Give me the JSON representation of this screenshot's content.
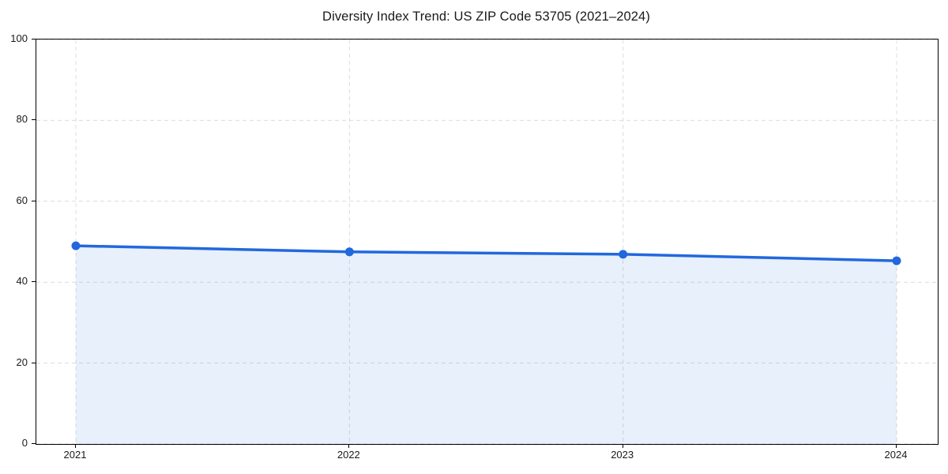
{
  "chart_data": {
    "type": "area",
    "title": "Diversity Index Trend: US ZIP Code 53705 (2021–2024)",
    "x": [
      "2021",
      "2022",
      "2023",
      "2024"
    ],
    "series": [
      {
        "name": "Diversity Index",
        "values": [
          49.0,
          47.5,
          46.9,
          45.3
        ]
      }
    ],
    "xlabel": "",
    "ylabel": "",
    "ylim": [
      0,
      100
    ],
    "yticks": [
      0,
      20,
      40,
      60,
      80,
      100
    ],
    "grid": "dashed-both-axes",
    "legend": "none",
    "markers": "circle",
    "colors": {
      "line": "#2268dd",
      "fill": "rgba(34, 104, 221, 0.10)",
      "grid": "#dcdcdc",
      "axis": "#000000",
      "text": "#1a1a1a",
      "background": "#ffffff"
    }
  }
}
